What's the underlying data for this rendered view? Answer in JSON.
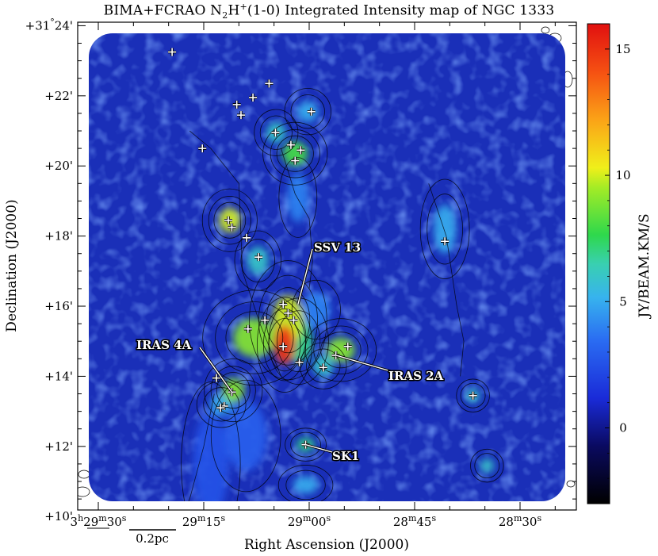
{
  "title_parts": [
    "BIMA+FCRAO N",
    "2",
    "H",
    "+",
    "(1-0) Integrated Intensity map of NGC 1333"
  ],
  "chart_data": {
    "type": "heatmap",
    "title": "BIMA+FCRAO N2H+(1-0) Integrated Intensity map of NGC 1333",
    "xlabel": "Right Ascension (J2000)",
    "ylabel": "Declination (J2000)",
    "colorbar_label": "JY/BEAM.KM/S",
    "colorbar_range": [
      -3,
      16
    ],
    "colorbar_ticks": [
      {
        "value": 0,
        "label": "0"
      },
      {
        "value": 5,
        "label": "5"
      },
      {
        "value": 10,
        "label": "10"
      },
      {
        "value": 15,
        "label": "15"
      }
    ],
    "x_ticks": [
      {
        "sec": 30,
        "parts": [
          "3",
          "h",
          "29",
          "m",
          "30",
          "s"
        ]
      },
      {
        "sec": 15,
        "parts": [
          "29",
          "m",
          "15",
          "s"
        ]
      },
      {
        "sec": 0,
        "parts": [
          "29",
          "m",
          "00",
          "s"
        ]
      },
      {
        "sec": -15,
        "parts": [
          "28",
          "m",
          "45",
          "s"
        ]
      },
      {
        "sec": -30,
        "parts": [
          "28",
          "m",
          "30",
          "s"
        ]
      }
    ],
    "y_ticks": [
      {
        "arcmin": 24,
        "parts": [
          "+31",
          "°",
          "24'"
        ]
      },
      {
        "arcmin": 22,
        "parts": [
          "+22'"
        ]
      },
      {
        "arcmin": 20,
        "parts": [
          "+20'"
        ]
      },
      {
        "arcmin": 18,
        "parts": [
          "+18'"
        ]
      },
      {
        "arcmin": 16,
        "parts": [
          "+16'"
        ]
      },
      {
        "arcmin": 14,
        "parts": [
          "+14'"
        ]
      },
      {
        "arcmin": 12,
        "parts": [
          "+12'"
        ]
      },
      {
        "arcmin": 10,
        "parts": [
          "+10'"
        ]
      }
    ],
    "scale_bar_label": "0.2pc",
    "annotations": [
      {
        "label": "SSV 13",
        "x": 1.6,
        "y": 16.05
      },
      {
        "label": "IRAS 2A",
        "x": -3.8,
        "y": 14.6
      },
      {
        "label": "IRAS 4A",
        "x": 11.0,
        "y": 13.55
      },
      {
        "label": "SK1",
        "x": 0.5,
        "y": 12.05
      }
    ],
    "sources": [
      {
        "x": 19.5,
        "y": 23.25
      },
      {
        "x": 5.7,
        "y": 22.35
      },
      {
        "x": 10.3,
        "y": 21.75
      },
      {
        "x": 9.7,
        "y": 21.45
      },
      {
        "x": 8.0,
        "y": 21.95
      },
      {
        "x": -0.3,
        "y": 21.55
      },
      {
        "x": 4.8,
        "y": 20.95
      },
      {
        "x": 2.6,
        "y": 20.6
      },
      {
        "x": 1.2,
        "y": 20.45
      },
      {
        "x": 2.0,
        "y": 20.15
      },
      {
        "x": 15.2,
        "y": 20.5
      },
      {
        "x": 11.5,
        "y": 18.45
      },
      {
        "x": 11.0,
        "y": 18.25
      },
      {
        "x": 8.9,
        "y": 17.95
      },
      {
        "x": 7.2,
        "y": 17.4
      },
      {
        "x": 3.7,
        "y": 16.05
      },
      {
        "x": 3.0,
        "y": 15.8
      },
      {
        "x": 2.2,
        "y": 15.6
      },
      {
        "x": 6.3,
        "y": 15.6
      },
      {
        "x": 8.7,
        "y": 15.35
      },
      {
        "x": 3.7,
        "y": 14.85
      },
      {
        "x": 1.4,
        "y": 14.4
      },
      {
        "x": -5.5,
        "y": 14.85
      },
      {
        "x": -3.8,
        "y": 14.6
      },
      {
        "x": -2.0,
        "y": 14.25
      },
      {
        "x": 13.2,
        "y": 13.95
      },
      {
        "x": 11.0,
        "y": 13.55
      },
      {
        "x": 12.1,
        "y": 13.15
      },
      {
        "x": 12.6,
        "y": 13.1
      },
      {
        "x": 0.5,
        "y": 12.05
      },
      {
        "x": -19.3,
        "y": 17.85
      },
      {
        "x": -23.3,
        "y": 13.45
      }
    ],
    "emission_peaks": [
      {
        "x": 3.5,
        "y": 14.9,
        "value": 15,
        "sx": 1.5,
        "sy": 0.55
      },
      {
        "x": 3.0,
        "y": 15.6,
        "value": 10,
        "sx": 2.2,
        "sy": 0.7
      },
      {
        "x": 7.8,
        "y": 15.1,
        "value": 9,
        "sx": 3.0,
        "sy": 0.55
      },
      {
        "x": 1.5,
        "y": 15.0,
        "value": 7,
        "sx": 2.0,
        "sy": 0.6
      },
      {
        "x": 10.8,
        "y": 13.6,
        "value": 9,
        "sx": 1.6,
        "sy": 0.35
      },
      {
        "x": 12.5,
        "y": 13.2,
        "value": 5,
        "sx": 1.6,
        "sy": 0.3
      },
      {
        "x": -4.5,
        "y": 14.75,
        "value": 9,
        "sx": 2.0,
        "sy": 0.35
      },
      {
        "x": -2.0,
        "y": 14.3,
        "value": 6,
        "sx": 1.5,
        "sy": 0.3
      },
      {
        "x": 11.3,
        "y": 18.45,
        "value": 10,
        "sx": 1.5,
        "sy": 0.35
      },
      {
        "x": 7.3,
        "y": 17.3,
        "value": 6,
        "sx": 1.5,
        "sy": 0.4
      },
      {
        "x": 2.0,
        "y": 20.35,
        "value": 8,
        "sx": 1.8,
        "sy": 0.35
      },
      {
        "x": 4.7,
        "y": 20.95,
        "value": 6,
        "sx": 1.4,
        "sy": 0.3
      },
      {
        "x": 0.2,
        "y": 21.55,
        "value": 5,
        "sx": 1.5,
        "sy": 0.3
      },
      {
        "x": 1.6,
        "y": 19.1,
        "value": 4,
        "sx": 1.5,
        "sy": 0.7
      },
      {
        "x": -1.0,
        "y": 15.9,
        "value": 4,
        "sx": 2.0,
        "sy": 0.5
      },
      {
        "x": 0.5,
        "y": 12.05,
        "value": 7,
        "sx": 1.3,
        "sy": 0.2
      },
      {
        "x": 0.5,
        "y": 10.9,
        "value": 5,
        "sx": 1.8,
        "sy": 0.25
      },
      {
        "x": -19.3,
        "y": 18.2,
        "value": 5,
        "sx": 1.6,
        "sy": 0.7
      },
      {
        "x": -23.3,
        "y": 13.45,
        "value": 6,
        "sx": 1.0,
        "sy": 0.2
      },
      {
        "x": -25.3,
        "y": 11.45,
        "value": 6,
        "sx": 1.0,
        "sy": 0.2
      },
      {
        "x": 9.0,
        "y": 12.3,
        "value": 3,
        "sx": 3.0,
        "sy": 1.0
      },
      {
        "x": 14.0,
        "y": 11.5,
        "value": 2.5,
        "sx": 2.5,
        "sy": 1.5
      }
    ]
  }
}
